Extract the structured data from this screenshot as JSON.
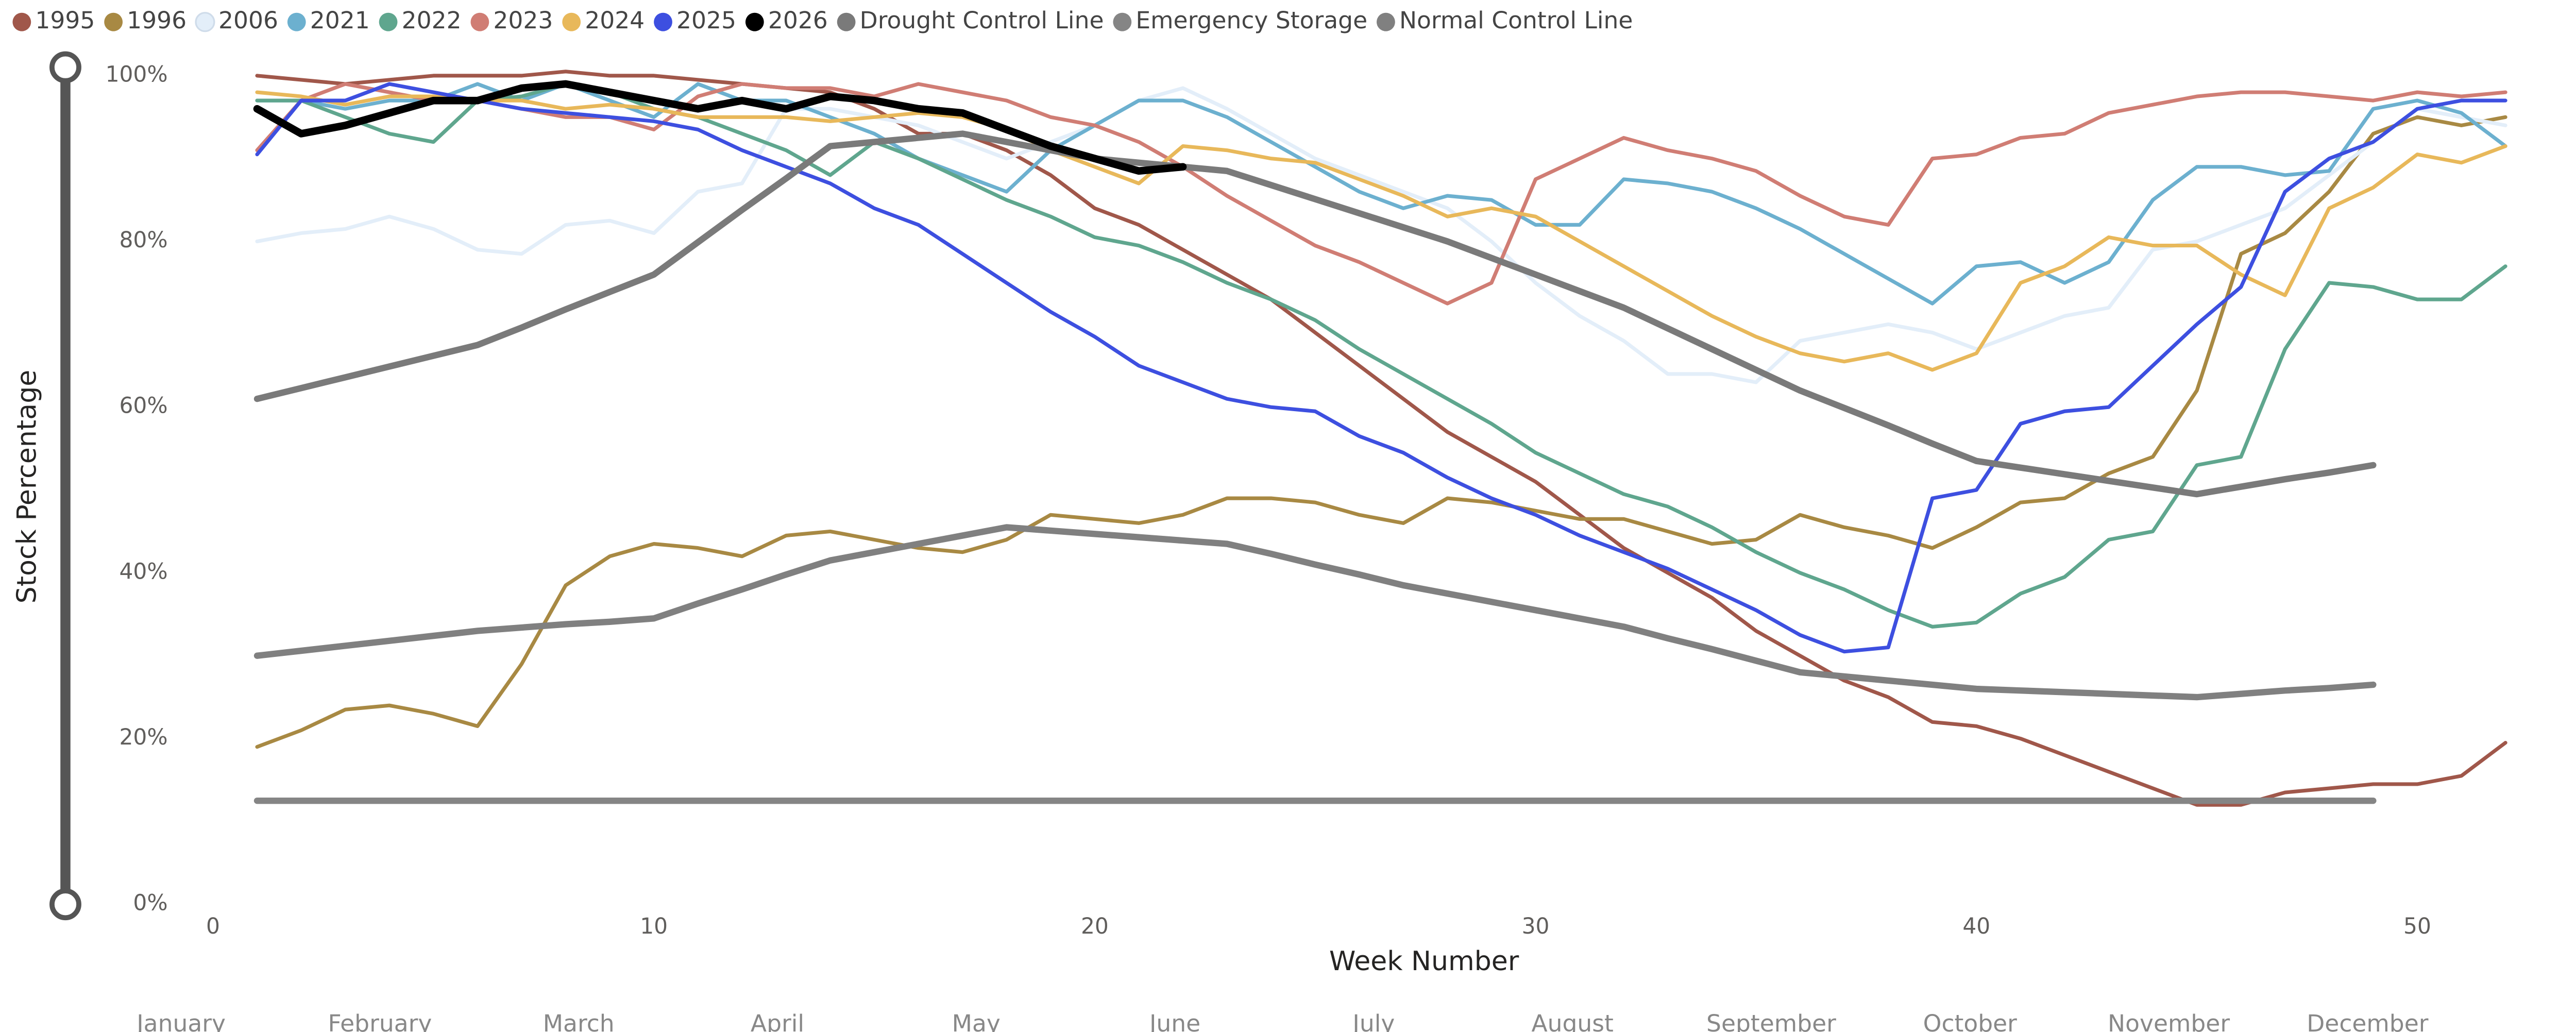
{
  "chart_data": {
    "type": "line",
    "x_label": "Week Number",
    "y_label": "Stock Percentage",
    "x": [
      1,
      2,
      3,
      4,
      5,
      6,
      7,
      8,
      9,
      10,
      11,
      12,
      13,
      14,
      15,
      16,
      17,
      18,
      19,
      20,
      21,
      22,
      23,
      24,
      25,
      26,
      27,
      28,
      29,
      30,
      31,
      32,
      33,
      34,
      35,
      36,
      37,
      38,
      39,
      40,
      41,
      42,
      43,
      44,
      45,
      46,
      47,
      48,
      49,
      50,
      51,
      52
    ],
    "xlim": [
      0,
      52.2
    ],
    "xticks": [
      0,
      10,
      20,
      30,
      40,
      50
    ],
    "ylim": [
      0,
      100
    ],
    "yticks": [
      {
        "value": 0,
        "label": "0%"
      },
      {
        "value": 20,
        "label": "20%"
      },
      {
        "value": 40,
        "label": "40%"
      },
      {
        "value": 60,
        "label": "60%"
      },
      {
        "value": 80,
        "label": "80%"
      },
      {
        "value": 100,
        "label": "100%"
      }
    ],
    "month_labels": [
      "January",
      "February",
      "March",
      "April",
      "May",
      "June",
      "July",
      "August",
      "September",
      "October",
      "November",
      "December"
    ],
    "legend": "top-left",
    "series": [
      {
        "name": "1995",
        "color": "#a0574a",
        "width": 2.2,
        "values": [
          100,
          99.5,
          99,
          99.5,
          100,
          100,
          100,
          100.5,
          100,
          100,
          99.5,
          99,
          98.5,
          98,
          96,
          93,
          93,
          91,
          88,
          84,
          82,
          79,
          76,
          73,
          69,
          65,
          61,
          57,
          54,
          51,
          47,
          43,
          40,
          37,
          33,
          30,
          27,
          25,
          22,
          21.5,
          20,
          18,
          16,
          14,
          12,
          12,
          13.5,
          14,
          14.5,
          14.5,
          15.5,
          19.5
        ]
      },
      {
        "name": "1996",
        "color": "#a88943",
        "width": 2.2,
        "values": [
          19,
          21,
          23.5,
          24,
          23,
          21.5,
          29,
          38.5,
          42,
          43.5,
          43,
          42,
          44.5,
          45,
          44,
          43,
          42.5,
          44,
          47,
          46.5,
          46,
          47,
          49,
          49,
          48.5,
          47,
          46,
          49,
          48.5,
          47.5,
          46.5,
          46.5,
          45,
          43.5,
          44,
          47,
          45.5,
          44.5,
          43,
          45.5,
          48.5,
          49,
          52,
          54,
          62,
          78.5,
          81,
          86,
          93,
          95,
          94,
          95
        ]
      },
      {
        "name": "2006",
        "color": "#e3eef9",
        "width": 2.2,
        "values": [
          80,
          81,
          81.5,
          83,
          81.5,
          79,
          78.5,
          82,
          82.5,
          81,
          86,
          87,
          96,
          96,
          95,
          94,
          92,
          90,
          92,
          94,
          97,
          98.5,
          96,
          93,
          90,
          88,
          86,
          84,
          80,
          75,
          71,
          68,
          64,
          64,
          63,
          68,
          69,
          70,
          69,
          67,
          69,
          71,
          72,
          79,
          80,
          82,
          84,
          88,
          92,
          96,
          95,
          94
        ]
      },
      {
        "name": "2021",
        "color": "#6cb0cf",
        "width": 2.2,
        "values": [
          97,
          97,
          96,
          97,
          97,
          99,
          97,
          99,
          97,
          95,
          99,
          97,
          97,
          95,
          93,
          90,
          88,
          86,
          91,
          94,
          97,
          97,
          95,
          92,
          89,
          86,
          84,
          85.5,
          85,
          82,
          82,
          87.5,
          87,
          86,
          84,
          81.5,
          78.5,
          75.5,
          72.5,
          77,
          77.5,
          75,
          77.5,
          85,
          89,
          89,
          88,
          88.5,
          96,
          97,
          95.5,
          91.5
        ]
      },
      {
        "name": "2022",
        "color": "#5fa68e",
        "width": 2.2,
        "values": [
          97,
          97,
          95,
          93,
          92,
          97,
          97.5,
          99,
          98,
          96,
          95,
          93,
          91,
          88,
          92,
          90,
          87.5,
          85,
          83,
          80.5,
          79.5,
          77.5,
          75,
          73,
          70.5,
          67,
          64,
          61,
          58,
          54.5,
          52,
          49.5,
          48,
          45.5,
          42.5,
          40,
          38,
          35.5,
          33.5,
          34,
          37.5,
          39.5,
          44,
          45,
          53,
          54,
          67,
          75,
          74.5,
          73,
          73,
          77
        ]
      },
      {
        "name": "2023",
        "color": "#d07d74",
        "width": 2.2,
        "values": [
          91,
          97,
          99,
          98,
          97,
          97,
          96,
          95,
          95,
          93.5,
          97.5,
          99,
          98.5,
          98.5,
          97.5,
          99,
          98,
          97,
          95,
          94,
          92,
          89,
          85.5,
          82.5,
          79.5,
          77.5,
          75,
          72.5,
          75,
          87.5,
          90,
          92.5,
          91,
          90,
          88.5,
          85.5,
          83,
          82,
          90,
          90.5,
          92.5,
          93,
          95.5,
          96.5,
          97.5,
          98,
          98,
          97.5,
          97,
          98,
          97.5,
          98
        ]
      },
      {
        "name": "2024",
        "color": "#e8b85a",
        "width": 2.2,
        "values": [
          98,
          97.5,
          96.5,
          97.5,
          97.5,
          97,
          97,
          96,
          96.5,
          96,
          95,
          95,
          95,
          94.5,
          95,
          95.5,
          95,
          93.5,
          91,
          89,
          87,
          91.5,
          91,
          90,
          89.5,
          87.5,
          85.5,
          83,
          84,
          83,
          80,
          77,
          74,
          71,
          68.5,
          66.5,
          65.5,
          66.5,
          64.5,
          66.5,
          75,
          77,
          80.5,
          79.5,
          79.5,
          76,
          73.5,
          84,
          86.5,
          90.5,
          89.5,
          91.5
        ]
      },
      {
        "name": "2025",
        "color": "#3d4fe0",
        "width": 2.2,
        "values": [
          90.5,
          97,
          97,
          99,
          98,
          97,
          96,
          95.5,
          95,
          94.5,
          93.5,
          91,
          89,
          87,
          84,
          82,
          78.5,
          75,
          71.5,
          68.5,
          65,
          63,
          61,
          60,
          59.5,
          56.5,
          54.5,
          51.5,
          49,
          47,
          44.5,
          42.5,
          40.5,
          38,
          35.5,
          32.5,
          30.5,
          31,
          49,
          50,
          58,
          59.5,
          60,
          65,
          70,
          74.5,
          86,
          90,
          92,
          96,
          97,
          97
        ]
      },
      {
        "name": "2026",
        "color": "#000000",
        "width": 4.5,
        "values": [
          96,
          93,
          94,
          95.5,
          97,
          97,
          98.5,
          99,
          98,
          97,
          96,
          97,
          96,
          97.5,
          97,
          96,
          95.5,
          93.5,
          91.5,
          90,
          88.5,
          89,
          null,
          null,
          null,
          null,
          null,
          null,
          null,
          null,
          null,
          null,
          null,
          null,
          null,
          null,
          null,
          null,
          null,
          null,
          null,
          null,
          null,
          null,
          null,
          null,
          null,
          null,
          null,
          null,
          null,
          null
        ]
      },
      {
        "name": "Drought Control Line",
        "color": "#7a7a7a",
        "width": 3.8,
        "values": [
          61,
          62.3,
          63.6,
          64.9,
          66.2,
          67.5,
          69.6,
          71.8,
          73.9,
          76,
          79.9,
          83.8,
          87.6,
          91.5,
          92,
          92.5,
          93,
          92,
          91,
          90,
          89.5,
          89,
          88.5,
          86.8,
          85.1,
          83.4,
          81.7,
          80,
          78,
          76,
          74,
          72,
          69.5,
          67,
          64.5,
          62,
          59.9,
          57.8,
          55.6,
          53.5,
          52.7,
          51.9,
          51.1,
          50.3,
          49.5,
          50.4,
          51.3,
          52.1,
          53,
          null,
          null,
          null
        ]
      },
      {
        "name": "Emergency Storage",
        "color": "#858585",
        "width": 3.8,
        "values": [
          12.5,
          12.5,
          12.5,
          12.5,
          12.5,
          12.5,
          12.5,
          12.5,
          12.5,
          12.5,
          12.5,
          12.5,
          12.5,
          12.5,
          12.5,
          12.5,
          12.5,
          12.5,
          12.5,
          12.5,
          12.5,
          12.5,
          12.5,
          12.5,
          12.5,
          12.5,
          12.5,
          12.5,
          12.5,
          12.5,
          12.5,
          12.5,
          12.5,
          12.5,
          12.5,
          12.5,
          12.5,
          12.5,
          12.5,
          12.5,
          12.5,
          12.5,
          12.5,
          12.5,
          12.5,
          12.5,
          12.5,
          12.5,
          12.5,
          null,
          null,
          null
        ]
      },
      {
        "name": "Normal Control Line",
        "color": "#808080",
        "width": 3.8,
        "values": [
          30,
          30.6,
          31.2,
          31.8,
          32.4,
          33,
          33.4,
          33.8,
          34.1,
          34.5,
          36.3,
          38,
          39.8,
          41.5,
          42.5,
          43.5,
          44.5,
          45.5,
          45.1,
          44.7,
          44.3,
          43.9,
          43.5,
          42.3,
          41,
          39.8,
          38.5,
          37.5,
          36.5,
          35.5,
          34.5,
          33.5,
          32.1,
          30.8,
          29.4,
          28,
          27.5,
          27,
          26.5,
          26,
          25.8,
          25.6,
          25.4,
          25.2,
          25,
          25.4,
          25.8,
          26.1,
          26.5,
          null,
          null,
          null
        ]
      }
    ]
  }
}
